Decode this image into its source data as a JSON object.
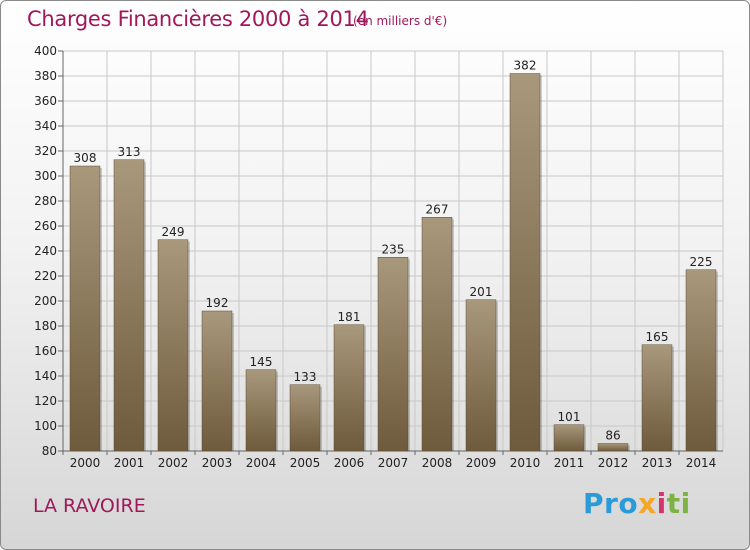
{
  "header": {
    "title": "Charges Financières 2000 à 2014",
    "subtitle": "(en milliers d'€)"
  },
  "footer": {
    "place": "LA RAVOIRE",
    "logo_text": "Proxiti",
    "logo_parts": [
      "Pro",
      "x",
      "i",
      "ti"
    ]
  },
  "colors": {
    "title": "#a0185a",
    "bar_top": "#a8987c",
    "bar_bottom": "#6e5a3c",
    "grid": "#c8c8c8"
  },
  "chart_data": {
    "type": "bar",
    "title": "Charges Financières 2000 à 2014",
    "subtitle": "(en milliers d'€)",
    "categories": [
      "2000",
      "2001",
      "2002",
      "2003",
      "2004",
      "2005",
      "2006",
      "2007",
      "2008",
      "2009",
      "2010",
      "2011",
      "2012",
      "2013",
      "2014"
    ],
    "values": [
      308,
      313,
      249,
      192,
      145,
      133,
      181,
      235,
      267,
      201,
      382,
      101,
      86,
      165,
      225
    ],
    "ylim": [
      80,
      400
    ],
    "yticks": [
      80,
      100,
      120,
      140,
      160,
      180,
      200,
      220,
      240,
      260,
      280,
      300,
      320,
      340,
      360,
      380,
      400
    ],
    "grid": true,
    "xlabel": "",
    "ylabel": ""
  }
}
